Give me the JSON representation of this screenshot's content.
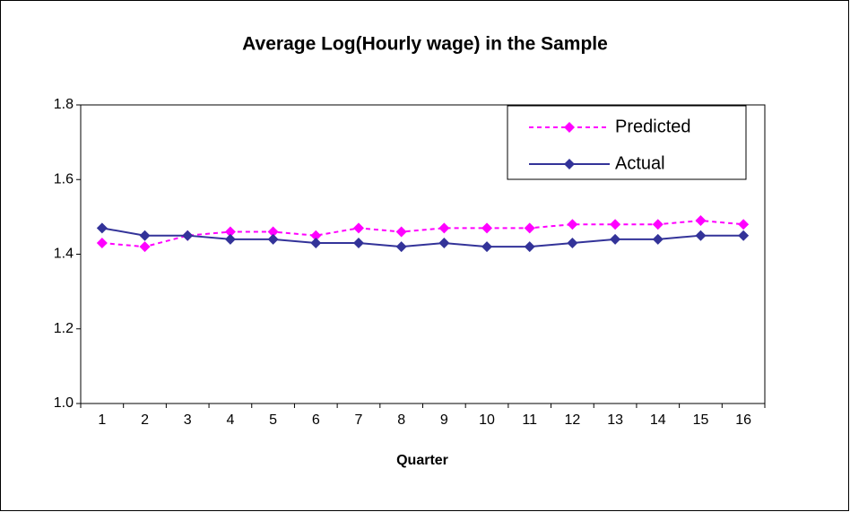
{
  "chart_data": {
    "type": "line",
    "title": "Average Log(Hourly wage) in the Sample",
    "x_label": "Quarter",
    "categories": [
      "1",
      "2",
      "3",
      "4",
      "5",
      "6",
      "7",
      "8",
      "9",
      "10",
      "11",
      "12",
      "13",
      "14",
      "15",
      "16"
    ],
    "series": [
      {
        "name": "Predicted",
        "color": "#ff00ff",
        "line_style": "dashed",
        "marker": "diamond",
        "values": [
          1.43,
          1.42,
          1.45,
          1.46,
          1.46,
          1.45,
          1.47,
          1.46,
          1.47,
          1.47,
          1.47,
          1.48,
          1.48,
          1.48,
          1.49,
          1.48
        ]
      },
      {
        "name": "Actual",
        "color": "#333399",
        "line_style": "solid",
        "marker": "diamond",
        "values": [
          1.47,
          1.45,
          1.45,
          1.44,
          1.44,
          1.43,
          1.43,
          1.42,
          1.43,
          1.42,
          1.42,
          1.43,
          1.44,
          1.44,
          1.45,
          1.45
        ]
      }
    ],
    "ylim": [
      1.0,
      1.8
    ],
    "yticks": [
      {
        "value": 1,
        "label": "1.0"
      },
      1.2,
      1.4,
      1.6,
      1.8
    ],
    "grid": false,
    "legend": "upper right"
  }
}
